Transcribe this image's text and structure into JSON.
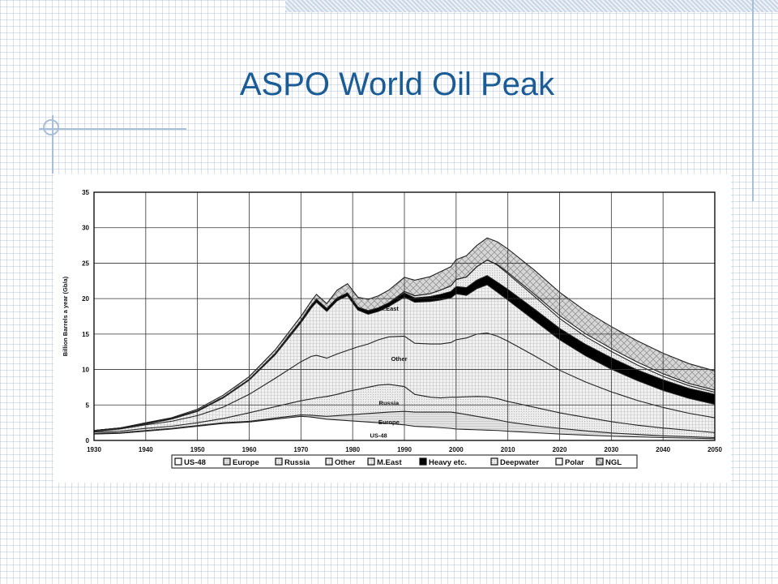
{
  "slide": {
    "title": "ASPO World Oil Peak"
  },
  "colors": {
    "title": "#1a5c96",
    "decoration": "#a9bfd9"
  },
  "chart_data": {
    "type": "area",
    "stacked": true,
    "title": "",
    "xlabel": "",
    "ylabel": "Billion Barrels a year (Gb/a)",
    "xlim": [
      1930,
      2050
    ],
    "ylim": [
      0,
      35
    ],
    "x_ticks": [
      1930,
      1940,
      1950,
      1960,
      1970,
      1980,
      1990,
      2000,
      2010,
      2020,
      2030,
      2040,
      2050
    ],
    "y_ticks": [
      0,
      5,
      10,
      15,
      20,
      25,
      30,
      35
    ],
    "grid": true,
    "legend_position": "bottom",
    "x": [
      1930,
      1935,
      1940,
      1945,
      1950,
      1955,
      1960,
      1965,
      1970,
      1972,
      1973,
      1975,
      1977,
      1979,
      1981,
      1983,
      1985,
      1987,
      1990,
      1992,
      1995,
      1997,
      1999,
      2000,
      2002,
      2004,
      2006,
      2008,
      2010,
      2015,
      2020,
      2025,
      2030,
      2035,
      2040,
      2045,
      2050
    ],
    "series": [
      {
        "name": "US-48",
        "fill": "#ffffff",
        "values": [
          0.9,
          1.0,
          1.3,
          1.6,
          2.0,
          2.4,
          2.6,
          3.0,
          3.4,
          3.3,
          3.2,
          3.0,
          2.9,
          2.8,
          2.7,
          2.6,
          2.5,
          2.4,
          2.2,
          2.0,
          1.9,
          1.8,
          1.7,
          1.6,
          1.55,
          1.5,
          1.45,
          1.4,
          1.3,
          1.1,
          0.9,
          0.75,
          0.6,
          0.5,
          0.4,
          0.33,
          0.25
        ]
      },
      {
        "name": "Europe",
        "fill": "#eeeeee",
        "values": [
          0.1,
          0.1,
          0.1,
          0.1,
          0.1,
          0.1,
          0.1,
          0.15,
          0.2,
          0.25,
          0.3,
          0.4,
          0.6,
          0.8,
          1.0,
          1.2,
          1.4,
          1.6,
          1.9,
          2.0,
          2.1,
          2.2,
          2.3,
          2.3,
          2.1,
          1.9,
          1.7,
          1.5,
          1.3,
          1.0,
          0.8,
          0.6,
          0.45,
          0.35,
          0.25,
          0.2,
          0.15
        ]
      },
      {
        "name": "Russia",
        "fill": "#dcdcdc",
        "values": [
          0.2,
          0.2,
          0.3,
          0.3,
          0.4,
          0.6,
          1.2,
          1.6,
          2.0,
          2.3,
          2.5,
          2.8,
          3.0,
          3.3,
          3.5,
          3.7,
          3.9,
          3.9,
          3.5,
          2.5,
          2.1,
          2.0,
          2.1,
          2.2,
          2.5,
          2.8,
          3.0,
          3.0,
          2.9,
          2.6,
          2.2,
          1.9,
          1.6,
          1.3,
          1.1,
          0.9,
          0.7
        ]
      },
      {
        "name": "Other",
        "fill": "#f5f5f5",
        "values": [
          0.1,
          0.3,
          0.5,
          0.7,
          1.0,
          1.6,
          2.6,
          4.0,
          5.5,
          6.0,
          6.0,
          5.4,
          5.7,
          5.8,
          6.0,
          6.1,
          6.4,
          6.7,
          7.1,
          7.2,
          7.5,
          7.6,
          7.7,
          8.1,
          8.3,
          8.8,
          9.0,
          8.8,
          8.5,
          7.3,
          6.0,
          5.0,
          4.2,
          3.5,
          2.9,
          2.4,
          2.1
        ]
      },
      {
        "name": "M.East",
        "fill": "#e6e6e6",
        "values": [
          0.0,
          0.05,
          0.1,
          0.3,
          0.6,
          1.3,
          2.0,
          3.3,
          5.5,
          6.8,
          7.5,
          6.6,
          7.5,
          7.7,
          5.2,
          4.2,
          4.0,
          4.3,
          5.5,
          5.8,
          6.0,
          6.2,
          6.3,
          6.5,
          6.0,
          6.4,
          6.8,
          6.2,
          5.8,
          5.0,
          4.3,
          3.7,
          3.2,
          2.8,
          2.4,
          2.1,
          1.9
        ]
      },
      {
        "name": "Heavy etc.",
        "fill": "#000000",
        "values": [
          0.1,
          0.1,
          0.1,
          0.1,
          0.1,
          0.1,
          0.1,
          0.2,
          0.3,
          0.4,
          0.4,
          0.4,
          0.4,
          0.4,
          0.4,
          0.5,
          0.5,
          0.5,
          0.6,
          0.6,
          0.7,
          0.8,
          0.9,
          1.0,
          1.1,
          1.2,
          1.3,
          1.4,
          1.5,
          1.6,
          1.6,
          1.6,
          1.6,
          1.5,
          1.5,
          1.4,
          1.4
        ]
      },
      {
        "name": "Deepwater",
        "fill": "#d0d0d0",
        "values": [
          0.0,
          0.0,
          0.0,
          0.0,
          0.0,
          0.0,
          0.0,
          0.0,
          0.0,
          0.0,
          0.0,
          0.0,
          0.0,
          0.0,
          0.0,
          0.0,
          0.0,
          0.0,
          0.2,
          0.3,
          0.4,
          0.6,
          0.8,
          1.0,
          1.5,
          1.9,
          2.2,
          2.4,
          2.2,
          1.8,
          1.4,
          1.1,
          0.9,
          0.7,
          0.5,
          0.4,
          0.3
        ]
      },
      {
        "name": "Polar",
        "fill": "#ffffff",
        "values": [
          0.0,
          0.0,
          0.0,
          0.0,
          0.0,
          0.0,
          0.0,
          0.0,
          0.0,
          0.0,
          0.0,
          0.0,
          0.0,
          0.0,
          0.0,
          0.0,
          0.0,
          0.0,
          0.0,
          0.0,
          0.0,
          0.0,
          0.0,
          0.0,
          0.0,
          0.0,
          0.0,
          0.1,
          0.2,
          0.3,
          0.4,
          0.4,
          0.4,
          0.4,
          0.35,
          0.3,
          0.3
        ]
      },
      {
        "name": "NGL",
        "fill": "#c8c8c8",
        "values": [
          0.0,
          0.0,
          0.1,
          0.1,
          0.2,
          0.3,
          0.4,
          0.5,
          0.6,
          0.6,
          0.7,
          0.7,
          1.1,
          1.3,
          1.4,
          1.6,
          1.7,
          1.8,
          2.0,
          2.2,
          2.4,
          2.6,
          2.7,
          2.8,
          3.0,
          3.0,
          3.1,
          3.2,
          3.3,
          3.4,
          3.3,
          3.2,
          3.1,
          3.0,
          2.9,
          2.8,
          2.7
        ]
      }
    ],
    "annotations": [
      "M.East",
      "Other",
      "Russia",
      "Europe",
      "US-48"
    ]
  }
}
